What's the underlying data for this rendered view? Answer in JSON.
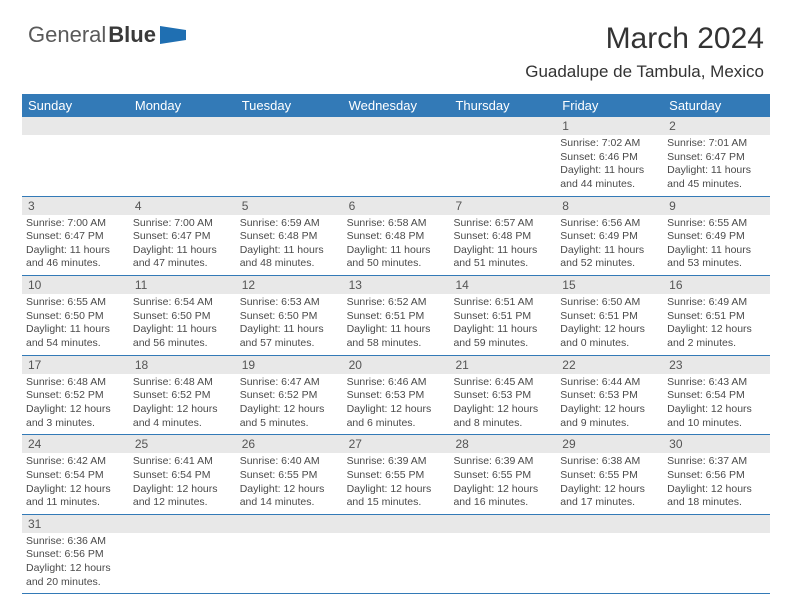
{
  "logo": {
    "first": "General",
    "second": "Blue"
  },
  "title": "March 2024",
  "location": "Guadalupe de Tambula, Mexico",
  "dayHeaders": [
    "Sunday",
    "Monday",
    "Tuesday",
    "Wednesday",
    "Thursday",
    "Friday",
    "Saturday"
  ],
  "colors": {
    "headerBg": "#337ab7",
    "headerText": "#ffffff",
    "numRowBg": "#e8e8e8",
    "borderColor": "#337ab7",
    "logoFlag": "#1f6fb2"
  },
  "weeks": [
    {
      "nums": [
        "",
        "",
        "",
        "",
        "",
        "1",
        "2"
      ],
      "cells": [
        null,
        null,
        null,
        null,
        null,
        {
          "sunrise": "7:02 AM",
          "sunset": "6:46 PM",
          "daylight": "11 hours and 44 minutes."
        },
        {
          "sunrise": "7:01 AM",
          "sunset": "6:47 PM",
          "daylight": "11 hours and 45 minutes."
        }
      ]
    },
    {
      "nums": [
        "3",
        "4",
        "5",
        "6",
        "7",
        "8",
        "9"
      ],
      "cells": [
        {
          "sunrise": "7:00 AM",
          "sunset": "6:47 PM",
          "daylight": "11 hours and 46 minutes."
        },
        {
          "sunrise": "7:00 AM",
          "sunset": "6:47 PM",
          "daylight": "11 hours and 47 minutes."
        },
        {
          "sunrise": "6:59 AM",
          "sunset": "6:48 PM",
          "daylight": "11 hours and 48 minutes."
        },
        {
          "sunrise": "6:58 AM",
          "sunset": "6:48 PM",
          "daylight": "11 hours and 50 minutes."
        },
        {
          "sunrise": "6:57 AM",
          "sunset": "6:48 PM",
          "daylight": "11 hours and 51 minutes."
        },
        {
          "sunrise": "6:56 AM",
          "sunset": "6:49 PM",
          "daylight": "11 hours and 52 minutes."
        },
        {
          "sunrise": "6:55 AM",
          "sunset": "6:49 PM",
          "daylight": "11 hours and 53 minutes."
        }
      ]
    },
    {
      "nums": [
        "10",
        "11",
        "12",
        "13",
        "14",
        "15",
        "16"
      ],
      "cells": [
        {
          "sunrise": "6:55 AM",
          "sunset": "6:50 PM",
          "daylight": "11 hours and 54 minutes."
        },
        {
          "sunrise": "6:54 AM",
          "sunset": "6:50 PM",
          "daylight": "11 hours and 56 minutes."
        },
        {
          "sunrise": "6:53 AM",
          "sunset": "6:50 PM",
          "daylight": "11 hours and 57 minutes."
        },
        {
          "sunrise": "6:52 AM",
          "sunset": "6:51 PM",
          "daylight": "11 hours and 58 minutes."
        },
        {
          "sunrise": "6:51 AM",
          "sunset": "6:51 PM",
          "daylight": "11 hours and 59 minutes."
        },
        {
          "sunrise": "6:50 AM",
          "sunset": "6:51 PM",
          "daylight": "12 hours and 0 minutes."
        },
        {
          "sunrise": "6:49 AM",
          "sunset": "6:51 PM",
          "daylight": "12 hours and 2 minutes."
        }
      ]
    },
    {
      "nums": [
        "17",
        "18",
        "19",
        "20",
        "21",
        "22",
        "23"
      ],
      "cells": [
        {
          "sunrise": "6:48 AM",
          "sunset": "6:52 PM",
          "daylight": "12 hours and 3 minutes."
        },
        {
          "sunrise": "6:48 AM",
          "sunset": "6:52 PM",
          "daylight": "12 hours and 4 minutes."
        },
        {
          "sunrise": "6:47 AM",
          "sunset": "6:52 PM",
          "daylight": "12 hours and 5 minutes."
        },
        {
          "sunrise": "6:46 AM",
          "sunset": "6:53 PM",
          "daylight": "12 hours and 6 minutes."
        },
        {
          "sunrise": "6:45 AM",
          "sunset": "6:53 PM",
          "daylight": "12 hours and 8 minutes."
        },
        {
          "sunrise": "6:44 AM",
          "sunset": "6:53 PM",
          "daylight": "12 hours and 9 minutes."
        },
        {
          "sunrise": "6:43 AM",
          "sunset": "6:54 PM",
          "daylight": "12 hours and 10 minutes."
        }
      ]
    },
    {
      "nums": [
        "24",
        "25",
        "26",
        "27",
        "28",
        "29",
        "30"
      ],
      "cells": [
        {
          "sunrise": "6:42 AM",
          "sunset": "6:54 PM",
          "daylight": "12 hours and 11 minutes."
        },
        {
          "sunrise": "6:41 AM",
          "sunset": "6:54 PM",
          "daylight": "12 hours and 12 minutes."
        },
        {
          "sunrise": "6:40 AM",
          "sunset": "6:55 PM",
          "daylight": "12 hours and 14 minutes."
        },
        {
          "sunrise": "6:39 AM",
          "sunset": "6:55 PM",
          "daylight": "12 hours and 15 minutes."
        },
        {
          "sunrise": "6:39 AM",
          "sunset": "6:55 PM",
          "daylight": "12 hours and 16 minutes."
        },
        {
          "sunrise": "6:38 AM",
          "sunset": "6:55 PM",
          "daylight": "12 hours and 17 minutes."
        },
        {
          "sunrise": "6:37 AM",
          "sunset": "6:56 PM",
          "daylight": "12 hours and 18 minutes."
        }
      ]
    },
    {
      "nums": [
        "31",
        "",
        "",
        "",
        "",
        "",
        ""
      ],
      "cells": [
        {
          "sunrise": "6:36 AM",
          "sunset": "6:56 PM",
          "daylight": "12 hours and 20 minutes."
        },
        null,
        null,
        null,
        null,
        null,
        null
      ]
    }
  ],
  "labels": {
    "sunrise": "Sunrise:",
    "sunset": "Sunset:",
    "daylight": "Daylight:"
  }
}
